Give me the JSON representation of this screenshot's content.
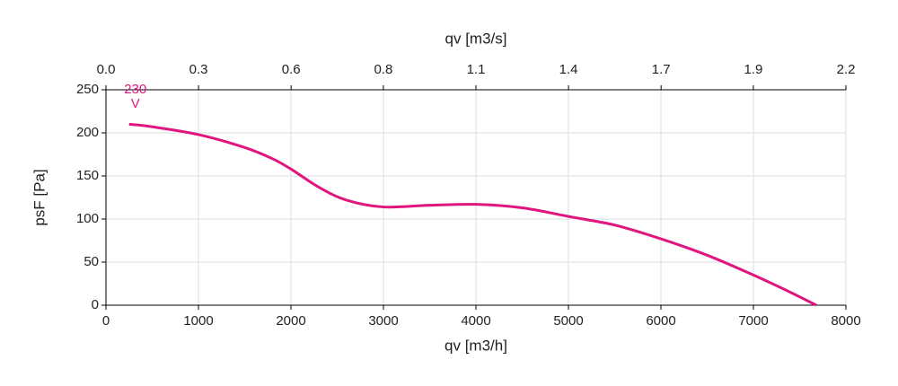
{
  "chart_data": {
    "type": "line",
    "x_label": "qv [m3/h]",
    "x2_label": "qv [m3/s]",
    "y_label": "psF [Pa]",
    "xlim": [
      0,
      8000
    ],
    "xticks": [
      0,
      1000,
      2000,
      3000,
      4000,
      5000,
      6000,
      7000,
      8000
    ],
    "x2lim": [
      0,
      2.222
    ],
    "x2ticks": [
      {
        "value": 0,
        "label": "0.0"
      },
      {
        "value": 0.278,
        "label": "0.3"
      },
      {
        "value": 0.556,
        "label": "0.6"
      },
      {
        "value": 0.833,
        "label": "0.8"
      },
      {
        "value": 1.111,
        "label": "1.1"
      },
      {
        "value": 1.389,
        "label": "1.4"
      },
      {
        "value": 1.667,
        "label": "1.7"
      },
      {
        "value": 1.944,
        "label": "1.9"
      },
      {
        "value": 2.222,
        "label": "2.2"
      }
    ],
    "ylim": [
      0,
      250
    ],
    "yticks": [
      0,
      50,
      100,
      150,
      200,
      250
    ],
    "grid": true,
    "x": [
      250,
      500,
      1000,
      1500,
      1800,
      2000,
      2300,
      2600,
      3000,
      3500,
      4000,
      4500,
      5000,
      5500,
      6000,
      6500,
      7000,
      7400,
      7680
    ],
    "series": [
      {
        "name": "230 V",
        "color": "#e0157f",
        "values": [
          210,
          207,
          198,
          183,
          170,
          158,
          137,
          122,
          114,
          116,
          117,
          113,
          103,
          93,
          77,
          58,
          35,
          15,
          0
        ]
      }
    ]
  }
}
